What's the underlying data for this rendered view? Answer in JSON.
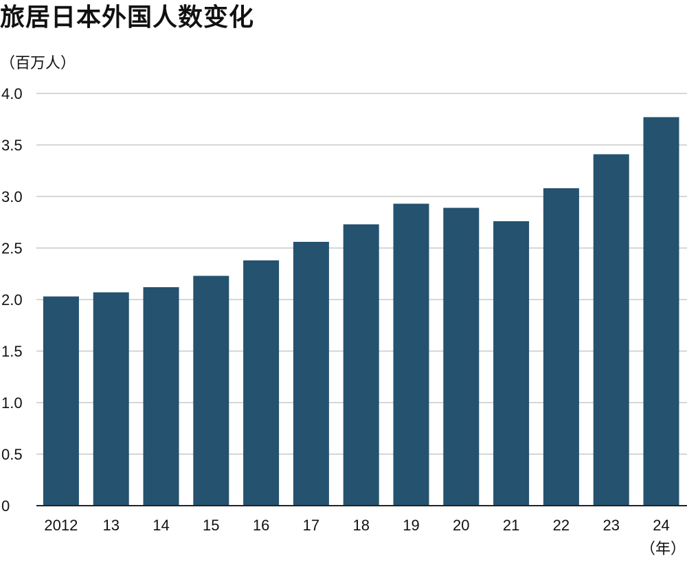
{
  "header": {
    "title": "旅居日本外国人数变化",
    "unit": "（百万人）"
  },
  "colors": {
    "bar": "#24526f",
    "grid": "#c8c8c8",
    "axis": "#222222"
  },
  "chart_data": {
    "type": "bar",
    "title": "旅居日本外国人数变化",
    "ylabel": "（百万人）",
    "xlabel": "（年）",
    "categories": [
      "2012",
      "13",
      "14",
      "15",
      "16",
      "17",
      "18",
      "19",
      "20",
      "21",
      "22",
      "23",
      "24"
    ],
    "values": [
      2.03,
      2.07,
      2.12,
      2.23,
      2.38,
      2.56,
      2.73,
      2.93,
      2.89,
      2.76,
      3.08,
      3.41,
      3.77
    ],
    "ylim": [
      0,
      4.0
    ],
    "yticks": [
      "0",
      "0.5",
      "1.0",
      "1.5",
      "2.0",
      "2.5",
      "3.0",
      "3.5",
      "4.0"
    ],
    "grid": true,
    "legend": "none"
  }
}
